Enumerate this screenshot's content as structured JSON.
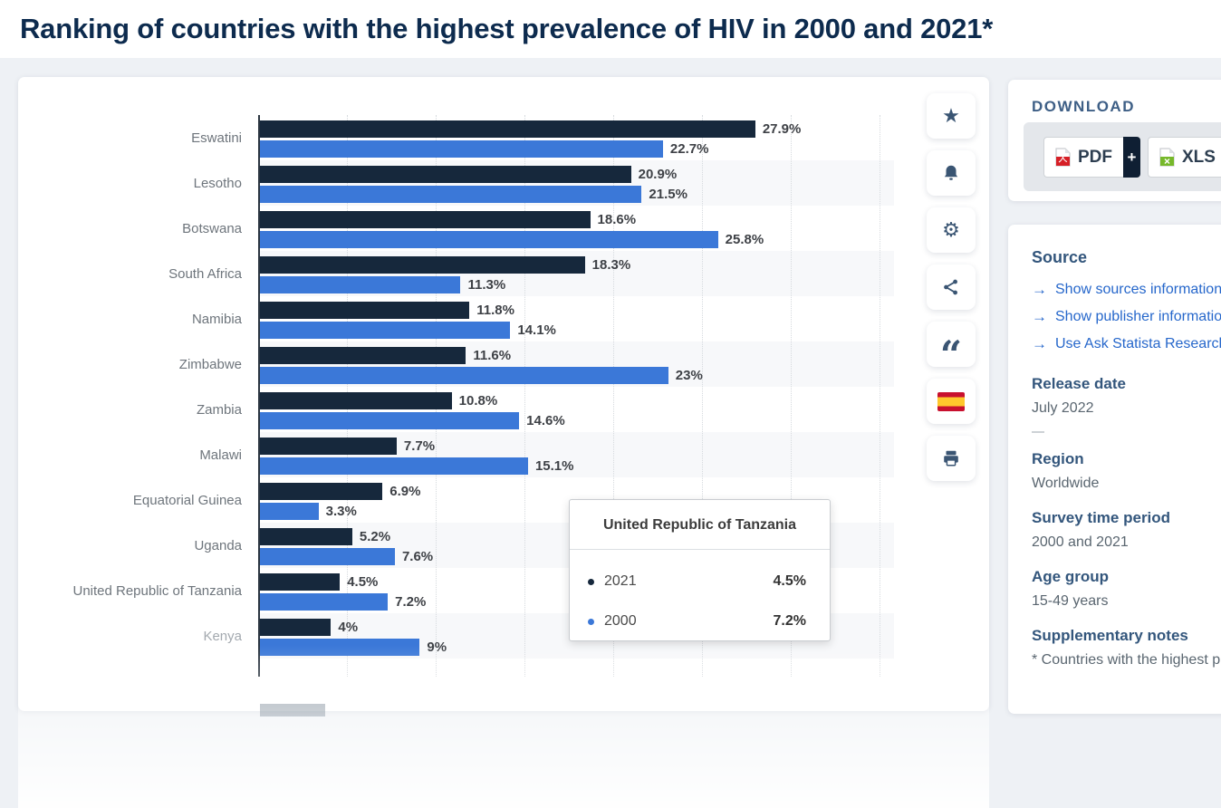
{
  "page": {
    "title": "Ranking of countries with the highest prevalence of HIV in 2000 and 2021*"
  },
  "chart_data": {
    "type": "bar",
    "orientation": "horizontal",
    "unit": "percent",
    "categories": [
      "Eswatini",
      "Lesotho",
      "Botswana",
      "South Africa",
      "Namibia",
      "Zimbabwe",
      "Zambia",
      "Malawi",
      "Equatorial Guinea",
      "Uganda",
      "United Republic of Tanzania",
      "Kenya"
    ],
    "series": [
      {
        "name": "2021",
        "color": "#16283c",
        "values": [
          27.9,
          20.9,
          18.6,
          18.3,
          11.8,
          11.6,
          10.8,
          7.7,
          6.9,
          5.2,
          4.5,
          4
        ],
        "display": [
          "27.9%",
          "20.9%",
          "18.6%",
          "18.3%",
          "11.8%",
          "11.6%",
          "10.8%",
          "7.7%",
          "6.9%",
          "5.2%",
          "4.5%",
          "4%"
        ]
      },
      {
        "name": "2000",
        "color": "#3b78d8",
        "values": [
          22.7,
          21.5,
          25.8,
          11.3,
          14.1,
          23,
          14.6,
          15.1,
          3.3,
          7.6,
          7.2,
          9
        ],
        "display": [
          "22.7%",
          "21.5%",
          "25.8%",
          "11.3%",
          "14.1%",
          "23%",
          "14.6%",
          "15.1%",
          "3.3%",
          "7.6%",
          "7.2%",
          "9%"
        ]
      }
    ],
    "xlim": [
      0,
      35
    ],
    "gridline_step_percent": 5,
    "grid": "dotted-vertical",
    "legend_position": "none (values labeled on bars, tooltip shown)",
    "faded_from_index": 11,
    "title": "Ranking of countries with the highest prevalence of HIV in 2000 and 2021*"
  },
  "tooltip": {
    "title": "United Republic of Tanzania",
    "rows": [
      {
        "label": "2021",
        "value": "4.5%",
        "color": "#16283c"
      },
      {
        "label": "2000",
        "value": "7.2%",
        "color": "#3b78d8"
      }
    ]
  },
  "toolbar": {
    "icons": [
      "favorite-star",
      "notification-bell",
      "settings-gear",
      "share-nodes",
      "citation-quote",
      "language-flag-spain",
      "print"
    ]
  },
  "download": {
    "heading": "DOWNLOAD",
    "pdf_label": "PDF",
    "pdf_plus": "+",
    "xls_label": "XLS",
    "xls_plus": "+"
  },
  "sidebar": {
    "source": {
      "heading": "Source",
      "links": [
        "Show sources information",
        "Show publisher information",
        "Use Ask Statista Research Service"
      ]
    },
    "meta": [
      {
        "label": "Release date",
        "value": "July 2022"
      },
      {
        "label": "Region",
        "value": "Worldwide"
      },
      {
        "label": "Survey time period",
        "value": "2000 and 2021"
      },
      {
        "label": "Age group",
        "value": "15-49 years"
      },
      {
        "label": "Supplementary notes",
        "value": "* Countries with the highest prevalence of HIV"
      }
    ]
  },
  "colors": {
    "series_2021": "#16283c",
    "series_2000": "#3b78d8",
    "title": "#0d2b4e",
    "link": "#2667cb",
    "section_header": "#33567c",
    "body_text": "#5a6670",
    "page_background": "#eef1f5",
    "row_band": "#f7f8fa",
    "flag_red": "#c8102e",
    "flag_yellow": "#ffc72c",
    "pdf_icon_red": "#d61f26",
    "xls_icon_green": "#76b82a",
    "plus_segment_navy": "#0f1f33"
  }
}
